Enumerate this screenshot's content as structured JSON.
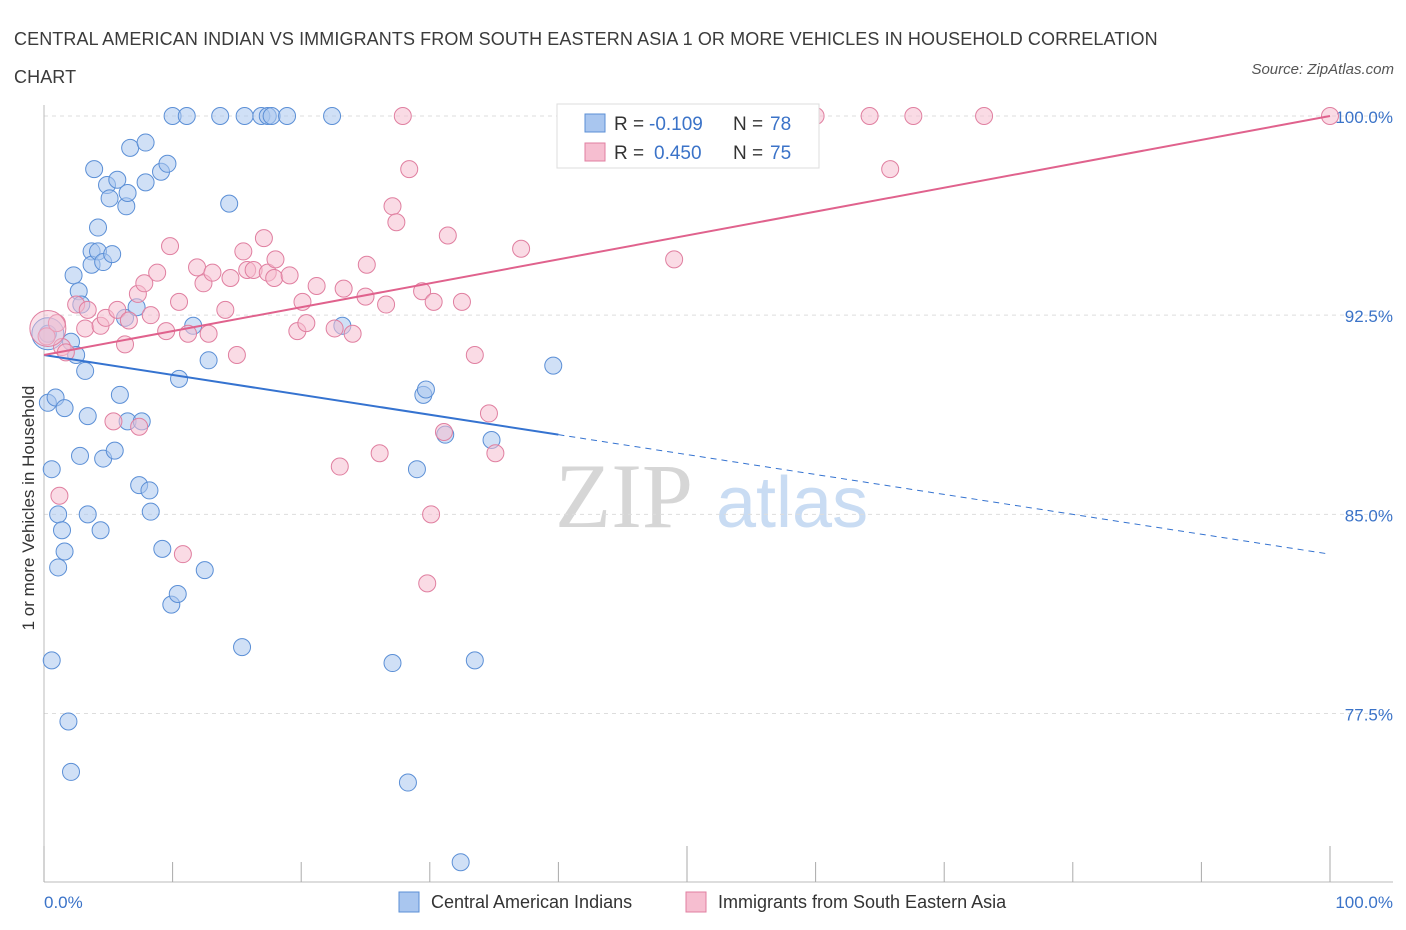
{
  "title": "CENTRAL AMERICAN INDIAN VS IMMIGRANTS FROM SOUTH EASTERN ASIA 1 OR MORE VEHICLES IN HOUSEHOLD CORRELATION CHART",
  "source": "Source: ZipAtlas.com",
  "watermark": {
    "zip": "ZIP",
    "atlas": "atlas"
  },
  "legend": {
    "r_label": "R =",
    "n_label": "N =",
    "series1": {
      "r": "-0.109",
      "n": "78"
    },
    "series2": {
      "r": "0.450",
      "n": "75"
    }
  },
  "colors": {
    "blue_fill": "#a9c6ef",
    "blue_stroke": "#5b8fd6",
    "blue_line": "#3573d0",
    "pink_fill": "#f6bed0",
    "pink_stroke": "#e07fa0",
    "pink_line": "#e0628d",
    "tick_text": "#3b73c8",
    "grid": "#dddddd"
  },
  "chart_data": {
    "type": "scatter",
    "title": "CENTRAL AMERICAN INDIAN VS IMMIGRANTS FROM SOUTH EASTERN ASIA 1 OR MORE VEHICLES IN HOUSEHOLD CORRELATION CHART",
    "xlabel": "",
    "ylabel": "1 or more Vehicles in Household",
    "xlim": [
      0,
      100
    ],
    "ylim": [
      70.5,
      100.5
    ],
    "x_tick_labels": [
      "0.0%",
      "100.0%"
    ],
    "y_ticks": [
      77.5,
      85.0,
      92.5,
      100.0
    ],
    "y_tick_labels": [
      "77.5%",
      "85.0%",
      "92.5%",
      "100.0%"
    ],
    "grid": "horizontal dashed",
    "legend_position": "top-center",
    "series": [
      {
        "name": "Central American Indians",
        "trend": {
          "x": [
            0,
            40
          ],
          "y": [
            91.0,
            88.0
          ],
          "dashed_extension": {
            "x": [
              40,
              100
            ],
            "y": [
              88.0,
              83.5
            ]
          }
        },
        "points": [
          [
            0.3,
            91.8
          ],
          [
            0.3,
            89.2
          ],
          [
            0.6,
            86.7
          ],
          [
            0.6,
            79.5
          ],
          [
            0.9,
            89.4
          ],
          [
            1.1,
            85.0
          ],
          [
            1.1,
            83.0
          ],
          [
            1.4,
            84.4
          ],
          [
            1.6,
            89.0
          ],
          [
            1.6,
            83.6
          ],
          [
            1.9,
            77.2
          ],
          [
            2.1,
            75.3
          ],
          [
            2.1,
            91.5
          ],
          [
            2.3,
            94.0
          ],
          [
            2.5,
            91.0
          ],
          [
            2.7,
            93.4
          ],
          [
            2.8,
            87.2
          ],
          [
            2.9,
            92.9
          ],
          [
            3.2,
            90.4
          ],
          [
            3.4,
            88.7
          ],
          [
            3.4,
            85.0
          ],
          [
            3.7,
            94.9
          ],
          [
            3.7,
            94.4
          ],
          [
            3.9,
            98.0
          ],
          [
            4.2,
            95.8
          ],
          [
            4.2,
            94.9
          ],
          [
            4.4,
            84.4
          ],
          [
            4.6,
            87.1
          ],
          [
            4.6,
            94.5
          ],
          [
            4.9,
            97.4
          ],
          [
            5.1,
            96.9
          ],
          [
            5.3,
            94.8
          ],
          [
            5.5,
            87.4
          ],
          [
            5.7,
            97.6
          ],
          [
            5.9,
            89.5
          ],
          [
            6.3,
            92.4
          ],
          [
            6.4,
            96.6
          ],
          [
            6.5,
            97.1
          ],
          [
            6.5,
            88.5
          ],
          [
            6.7,
            98.8
          ],
          [
            7.2,
            92.8
          ],
          [
            7.4,
            86.1
          ],
          [
            7.6,
            88.5
          ],
          [
            7.9,
            97.5
          ],
          [
            7.9,
            99.0
          ],
          [
            8.2,
            85.9
          ],
          [
            8.3,
            85.1
          ],
          [
            9.1,
            97.9
          ],
          [
            9.2,
            83.7
          ],
          [
            9.6,
            98.2
          ],
          [
            9.9,
            81.6
          ],
          [
            10.0,
            100.0
          ],
          [
            10.4,
            82.0
          ],
          [
            10.5,
            90.1
          ],
          [
            11.1,
            100.0
          ],
          [
            11.6,
            92.1
          ],
          [
            12.5,
            82.9
          ],
          [
            12.8,
            90.8
          ],
          [
            13.7,
            100.0
          ],
          [
            14.4,
            96.7
          ],
          [
            15.4,
            80.0
          ],
          [
            15.6,
            100.0
          ],
          [
            16.9,
            100.0
          ],
          [
            17.4,
            100.0
          ],
          [
            17.7,
            100.0
          ],
          [
            18.9,
            100.0
          ],
          [
            22.4,
            100.0
          ],
          [
            23.2,
            92.1
          ],
          [
            27.1,
            79.4
          ],
          [
            28.3,
            74.9
          ],
          [
            29.0,
            86.7
          ],
          [
            29.5,
            89.5
          ],
          [
            29.7,
            89.7
          ],
          [
            31.2,
            88.0
          ],
          [
            32.4,
            71.9
          ],
          [
            33.5,
            79.5
          ],
          [
            34.8,
            87.8
          ],
          [
            39.6,
            90.6
          ]
        ]
      },
      {
        "name": "Immigrants from South Eastern Asia",
        "trend": {
          "x": [
            0,
            100
          ],
          "y": [
            91.0,
            100.0
          ]
        },
        "points": [
          [
            0.2,
            91.7
          ],
          [
            1.0,
            92.2
          ],
          [
            1.2,
            85.7
          ],
          [
            1.4,
            91.3
          ],
          [
            1.7,
            91.1
          ],
          [
            2.5,
            92.9
          ],
          [
            3.2,
            92.0
          ],
          [
            3.4,
            92.7
          ],
          [
            4.4,
            92.1
          ],
          [
            4.8,
            92.4
          ],
          [
            5.4,
            88.5
          ],
          [
            5.7,
            92.7
          ],
          [
            6.3,
            91.4
          ],
          [
            6.6,
            92.3
          ],
          [
            7.3,
            93.3
          ],
          [
            7.4,
            88.3
          ],
          [
            7.8,
            93.7
          ],
          [
            8.3,
            92.5
          ],
          [
            8.8,
            94.1
          ],
          [
            9.5,
            91.9
          ],
          [
            9.8,
            95.1
          ],
          [
            10.5,
            93.0
          ],
          [
            10.8,
            83.5
          ],
          [
            11.2,
            91.8
          ],
          [
            11.9,
            94.3
          ],
          [
            12.4,
            93.7
          ],
          [
            12.8,
            91.8
          ],
          [
            13.1,
            94.1
          ],
          [
            14.1,
            92.7
          ],
          [
            14.5,
            93.9
          ],
          [
            15.0,
            91.0
          ],
          [
            15.5,
            94.9
          ],
          [
            15.8,
            94.2
          ],
          [
            16.3,
            94.2
          ],
          [
            17.1,
            95.4
          ],
          [
            17.4,
            94.1
          ],
          [
            17.9,
            93.9
          ],
          [
            18.0,
            94.6
          ],
          [
            19.1,
            94.0
          ],
          [
            19.7,
            91.9
          ],
          [
            20.1,
            93.0
          ],
          [
            20.4,
            92.2
          ],
          [
            21.2,
            93.6
          ],
          [
            22.6,
            92.0
          ],
          [
            23.0,
            86.8
          ],
          [
            23.3,
            93.5
          ],
          [
            24.0,
            91.8
          ],
          [
            25.0,
            93.2
          ],
          [
            25.1,
            94.4
          ],
          [
            26.1,
            87.3
          ],
          [
            26.6,
            92.9
          ],
          [
            27.1,
            96.6
          ],
          [
            27.4,
            96.0
          ],
          [
            27.9,
            100.0
          ],
          [
            28.4,
            98.0
          ],
          [
            29.4,
            93.4
          ],
          [
            29.8,
            82.4
          ],
          [
            30.1,
            85.0
          ],
          [
            30.3,
            93.0
          ],
          [
            31.1,
            88.1
          ],
          [
            31.4,
            95.5
          ],
          [
            32.5,
            93.0
          ],
          [
            33.5,
            91.0
          ],
          [
            34.6,
            88.8
          ],
          [
            35.1,
            87.3
          ],
          [
            37.1,
            95.0
          ],
          [
            43.0,
            100.0
          ],
          [
            46.8,
            100.0
          ],
          [
            49.0,
            94.6
          ],
          [
            60.0,
            100.0
          ],
          [
            64.2,
            100.0
          ],
          [
            65.8,
            98.0
          ],
          [
            67.6,
            100.0
          ],
          [
            73.1,
            100.0
          ],
          [
            100.0,
            100.0
          ]
        ]
      }
    ]
  },
  "bottom_legend": [
    "Central American Indians",
    "Immigrants from South Eastern Asia"
  ]
}
